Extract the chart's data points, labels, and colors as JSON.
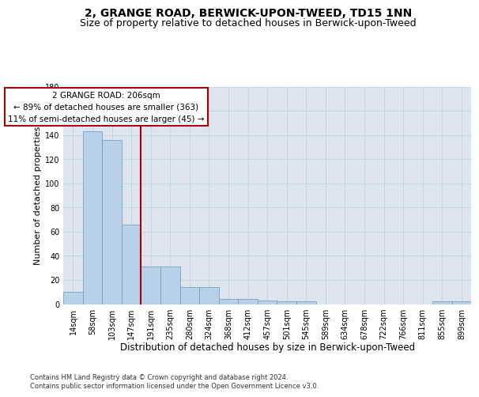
{
  "title": "2, GRANGE ROAD, BERWICK-UPON-TWEED, TD15 1NN",
  "subtitle": "Size of property relative to detached houses in Berwick-upon-Tweed",
  "xlabel": "Distribution of detached houses by size in Berwick-upon-Tweed",
  "ylabel": "Number of detached properties",
  "categories": [
    "14sqm",
    "58sqm",
    "103sqm",
    "147sqm",
    "191sqm",
    "235sqm",
    "280sqm",
    "324sqm",
    "368sqm",
    "412sqm",
    "457sqm",
    "501sqm",
    "545sqm",
    "589sqm",
    "634sqm",
    "678sqm",
    "722sqm",
    "766sqm",
    "811sqm",
    "855sqm",
    "899sqm"
  ],
  "values": [
    10,
    143,
    136,
    66,
    31,
    31,
    14,
    14,
    4,
    4,
    3,
    2,
    2,
    0,
    0,
    0,
    0,
    0,
    0,
    2,
    2
  ],
  "bar_color": "#b8d0e8",
  "bar_edge_color": "#6699bb",
  "vline_x": 3.5,
  "vline_color": "#aa0000",
  "annotation_line1": "2 GRANGE ROAD: 206sqm",
  "annotation_line2": "← 89% of detached houses are smaller (363)",
  "annotation_line3": "11% of semi-detached houses are larger (45) →",
  "annotation_box_facecolor": "#ffffff",
  "annotation_box_edgecolor": "#aa0000",
  "ylim": [
    0,
    180
  ],
  "yticks": [
    0,
    20,
    40,
    60,
    80,
    100,
    120,
    140,
    160,
    180
  ],
  "background_color": "#dde6f0",
  "grid_color": "#c8d4e0",
  "footer_line1": "Contains HM Land Registry data © Crown copyright and database right 2024.",
  "footer_line2": "Contains public sector information licensed under the Open Government Licence v3.0.",
  "title_fontsize": 10,
  "subtitle_fontsize": 9,
  "xlabel_fontsize": 8.5,
  "ylabel_fontsize": 8,
  "tick_fontsize": 7,
  "annotation_fontsize": 7.5,
  "footer_fontsize": 6
}
